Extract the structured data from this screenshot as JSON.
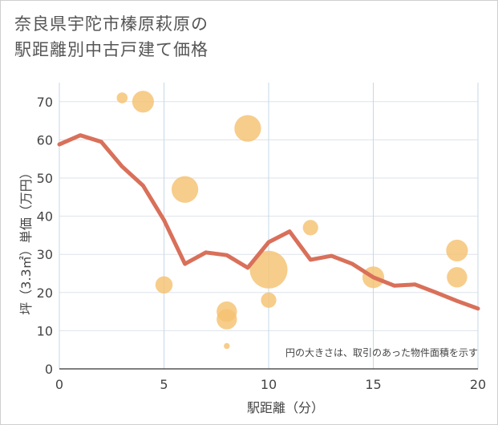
{
  "chart_data": {
    "type": "scatter",
    "title_lines": [
      "奈良県宇陀市榛原萩原の",
      "駅距離別中古戸建て価格"
    ],
    "xlabel": "駅距離（分）",
    "ylabel": "坪（3.3㎡）単価（万円）",
    "xlim": [
      0,
      20
    ],
    "ylim": [
      0,
      75
    ],
    "xticks": [
      0,
      5,
      10,
      15,
      20
    ],
    "yticks": [
      0,
      10,
      20,
      30,
      40,
      50,
      60,
      70
    ],
    "annotation": "円の大きさは、取引のあった物件面積を示す",
    "bubble_color": "#f5c272",
    "line_color": "#d9705a",
    "bubbles": [
      {
        "x": 3,
        "y": 71,
        "size": 1
      },
      {
        "x": 4,
        "y": 70,
        "size": 4
      },
      {
        "x": 5,
        "y": 22,
        "size": 2.5
      },
      {
        "x": 6,
        "y": 47,
        "size": 6
      },
      {
        "x": 8,
        "y": 15,
        "size": 3.5
      },
      {
        "x": 8,
        "y": 13,
        "size": 3.5
      },
      {
        "x": 8,
        "y": 6,
        "size": 0.3
      },
      {
        "x": 9,
        "y": 63,
        "size": 6
      },
      {
        "x": 10,
        "y": 26,
        "size": 12
      },
      {
        "x": 10,
        "y": 18,
        "size": 2
      },
      {
        "x": 12,
        "y": 37,
        "size": 2
      },
      {
        "x": 15,
        "y": 24,
        "size": 4
      },
      {
        "x": 19,
        "y": 31,
        "size": 4
      },
      {
        "x": 19,
        "y": 24,
        "size": 3.5
      }
    ],
    "trend_line": {
      "x": [
        0,
        1,
        2,
        3,
        4,
        5,
        6,
        7,
        8,
        9,
        10,
        11,
        12,
        13,
        14,
        15,
        16,
        17,
        18,
        19,
        20
      ],
      "y": [
        58.8,
        61.2,
        59.5,
        53.0,
        48.0,
        39.0,
        27.5,
        30.5,
        29.8,
        26.5,
        33.2,
        36.0,
        28.6,
        29.6,
        27.5,
        24.0,
        21.8,
        22.1,
        20.0,
        17.8,
        15.8
      ]
    }
  }
}
